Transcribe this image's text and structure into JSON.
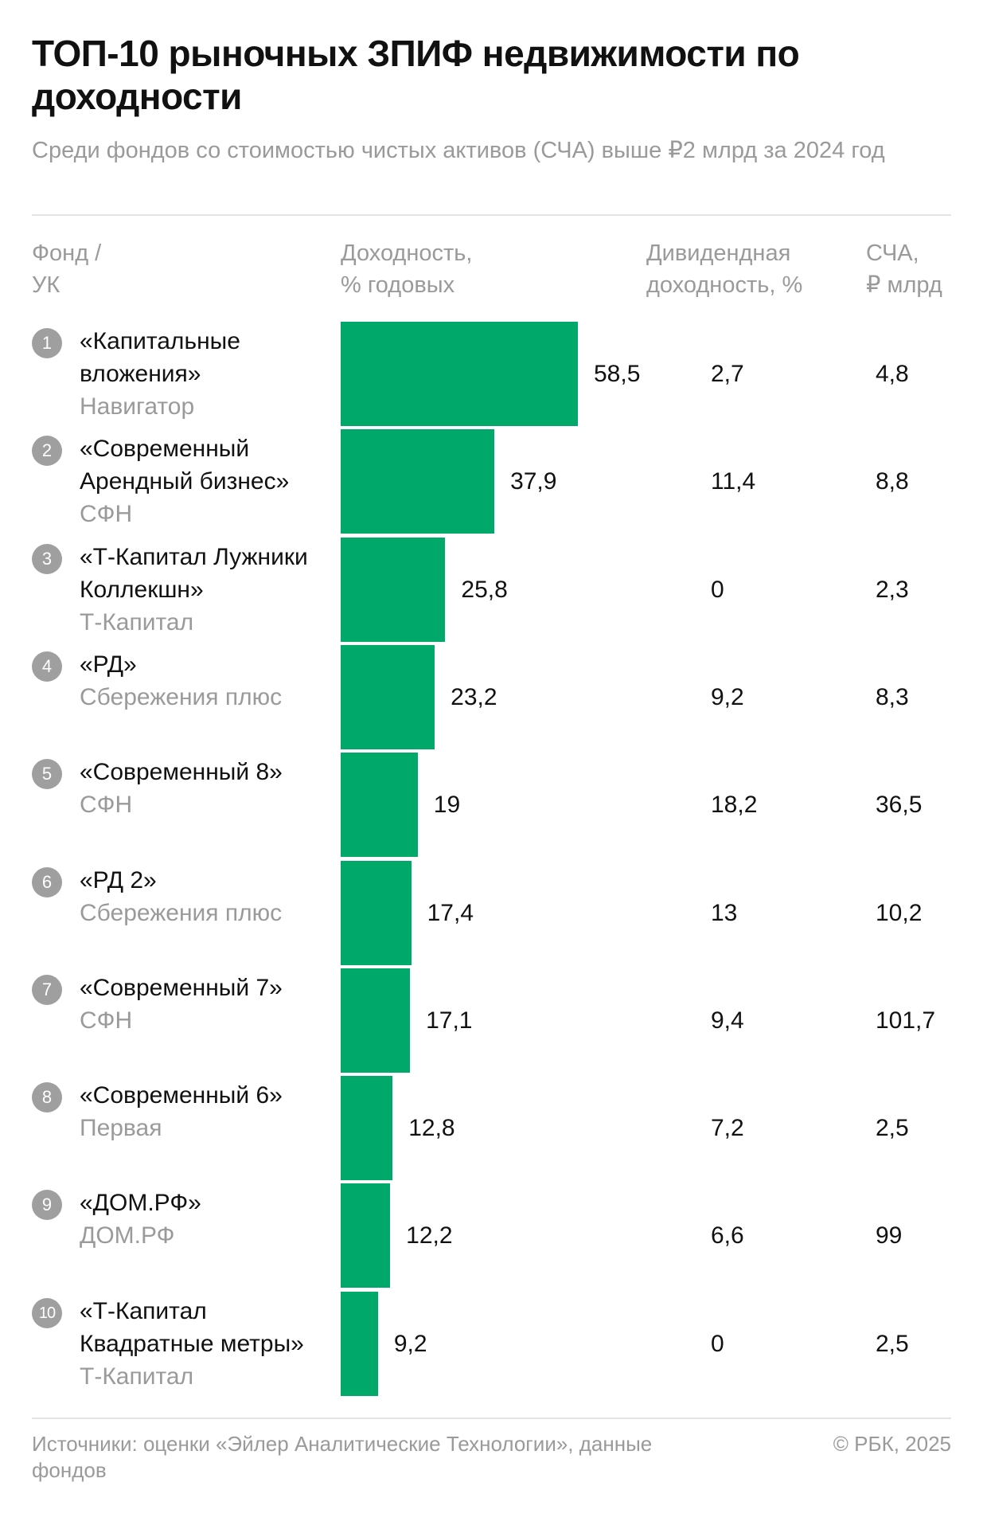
{
  "header": {
    "title": "ТОП-10 рыночных ЗПИФ недвижимости по доходности",
    "subtitle": "Среди фондов со стоимостью чистых активов (СЧА) выше ₽2 млрд за 2024 год"
  },
  "columns": {
    "fund_l1": "Фонд /",
    "fund_l2": "УК",
    "yield_l1": "Доходность,",
    "yield_l2": "% годовых",
    "div_l1": "Дивидендная",
    "div_l2": "доходность, %",
    "nav_l1": "СЧА,",
    "nav_l2": "₽ млрд"
  },
  "colors": {
    "bar": "#00a869",
    "badge": "#9f9f9f",
    "muted": "#9a9a9a"
  },
  "rows": [
    {
      "rank": "1",
      "name": "«Капитальные вложения»",
      "uk": "Навигатор",
      "yield": "58,5",
      "div": "2,7",
      "nav": "4,8"
    },
    {
      "rank": "2",
      "name": "«Современный Арендный бизнес»",
      "uk": "СФН",
      "yield": "37,9",
      "div": "11,4",
      "nav": "8,8"
    },
    {
      "rank": "3",
      "name": "«Т-Капитал Лужники Коллекшн»",
      "uk": "Т-Капитал",
      "yield": "25,8",
      "div": "0",
      "nav": "2,3"
    },
    {
      "rank": "4",
      "name": "«РД»",
      "uk": "Сбережения плюс",
      "yield": "23,2",
      "div": "9,2",
      "nav": "8,3"
    },
    {
      "rank": "5",
      "name": "«Современный 8»",
      "uk": "СФН",
      "yield": "19",
      "div": "18,2",
      "nav": "36,5"
    },
    {
      "rank": "6",
      "name": "«РД 2»",
      "uk": "Сбережения плюс",
      "yield": "17,4",
      "div": "13",
      "nav": "10,2"
    },
    {
      "rank": "7",
      "name": "«Современный 7»",
      "uk": "СФН",
      "yield": "17,1",
      "div": "9,4",
      "nav": "101,7"
    },
    {
      "rank": "8",
      "name": "«Современный 6»",
      "uk": "Первая",
      "yield": "12,8",
      "div": "7,2",
      "nav": "2,5"
    },
    {
      "rank": "9",
      "name": "«ДОМ.РФ»",
      "uk": "ДОМ.РФ",
      "yield": "12,2",
      "div": "6,6",
      "nav": "99"
    },
    {
      "rank": "10",
      "name": "«Т-Капитал Квадратные метры»",
      "uk": "Т-Капитал",
      "yield": "9,2",
      "div": "0",
      "nav": "2,5"
    }
  ],
  "chart_data": {
    "type": "bar",
    "orientation": "horizontal",
    "categories": [
      "«Капитальные вложения»",
      "«Современный Арендный бизнес»",
      "«Т-Капитал Лужники Коллекшн»",
      "«РД»",
      "«Современный 8»",
      "«РД 2»",
      "«Современный 7»",
      "«Современный 6»",
      "«ДОМ.РФ»",
      "«Т-Капитал Квадратные метры»"
    ],
    "values": [
      58.5,
      37.9,
      25.8,
      23.2,
      19,
      17.4,
      17.1,
      12.8,
      12.2,
      9.2
    ],
    "title": "ТОП-10 рыночных ЗПИФ недвижимости по доходности",
    "xlabel": "",
    "ylabel": "",
    "xlim": [
      0,
      58.5
    ],
    "grid": false,
    "legend": "none"
  },
  "footer": {
    "source": "Источники: оценки «Эйлер Аналитические Технологии», данные фондов",
    "copyright": "© РБК, 2025"
  }
}
